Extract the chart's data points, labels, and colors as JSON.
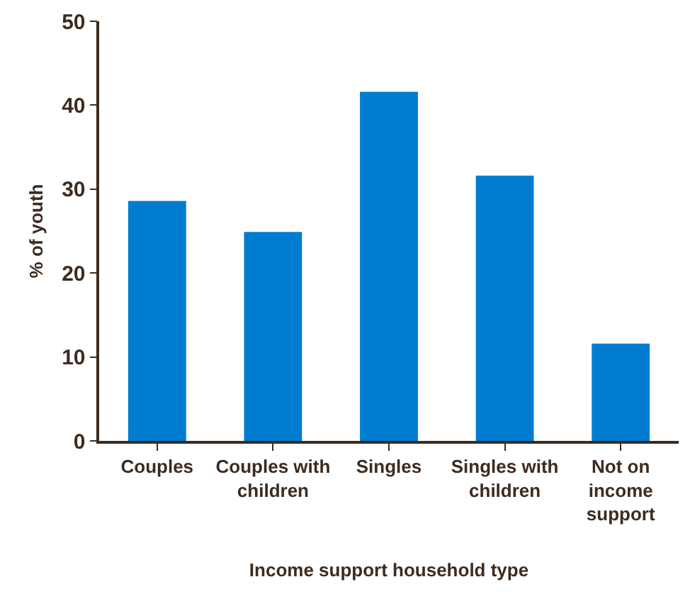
{
  "chart_data": {
    "type": "bar",
    "xlabel": "Income support household type",
    "ylabel": "% of youth",
    "categories": [
      "Couples",
      "Couples with children",
      "Singles",
      "Singles with children",
      "Not on income support"
    ],
    "values": [
      28.6,
      24.9,
      41.6,
      31.6,
      11.6
    ],
    "color": "#007dd0",
    "ylim": [
      0,
      50
    ],
    "yticks": [
      0,
      10,
      20,
      30,
      40,
      50
    ]
  }
}
